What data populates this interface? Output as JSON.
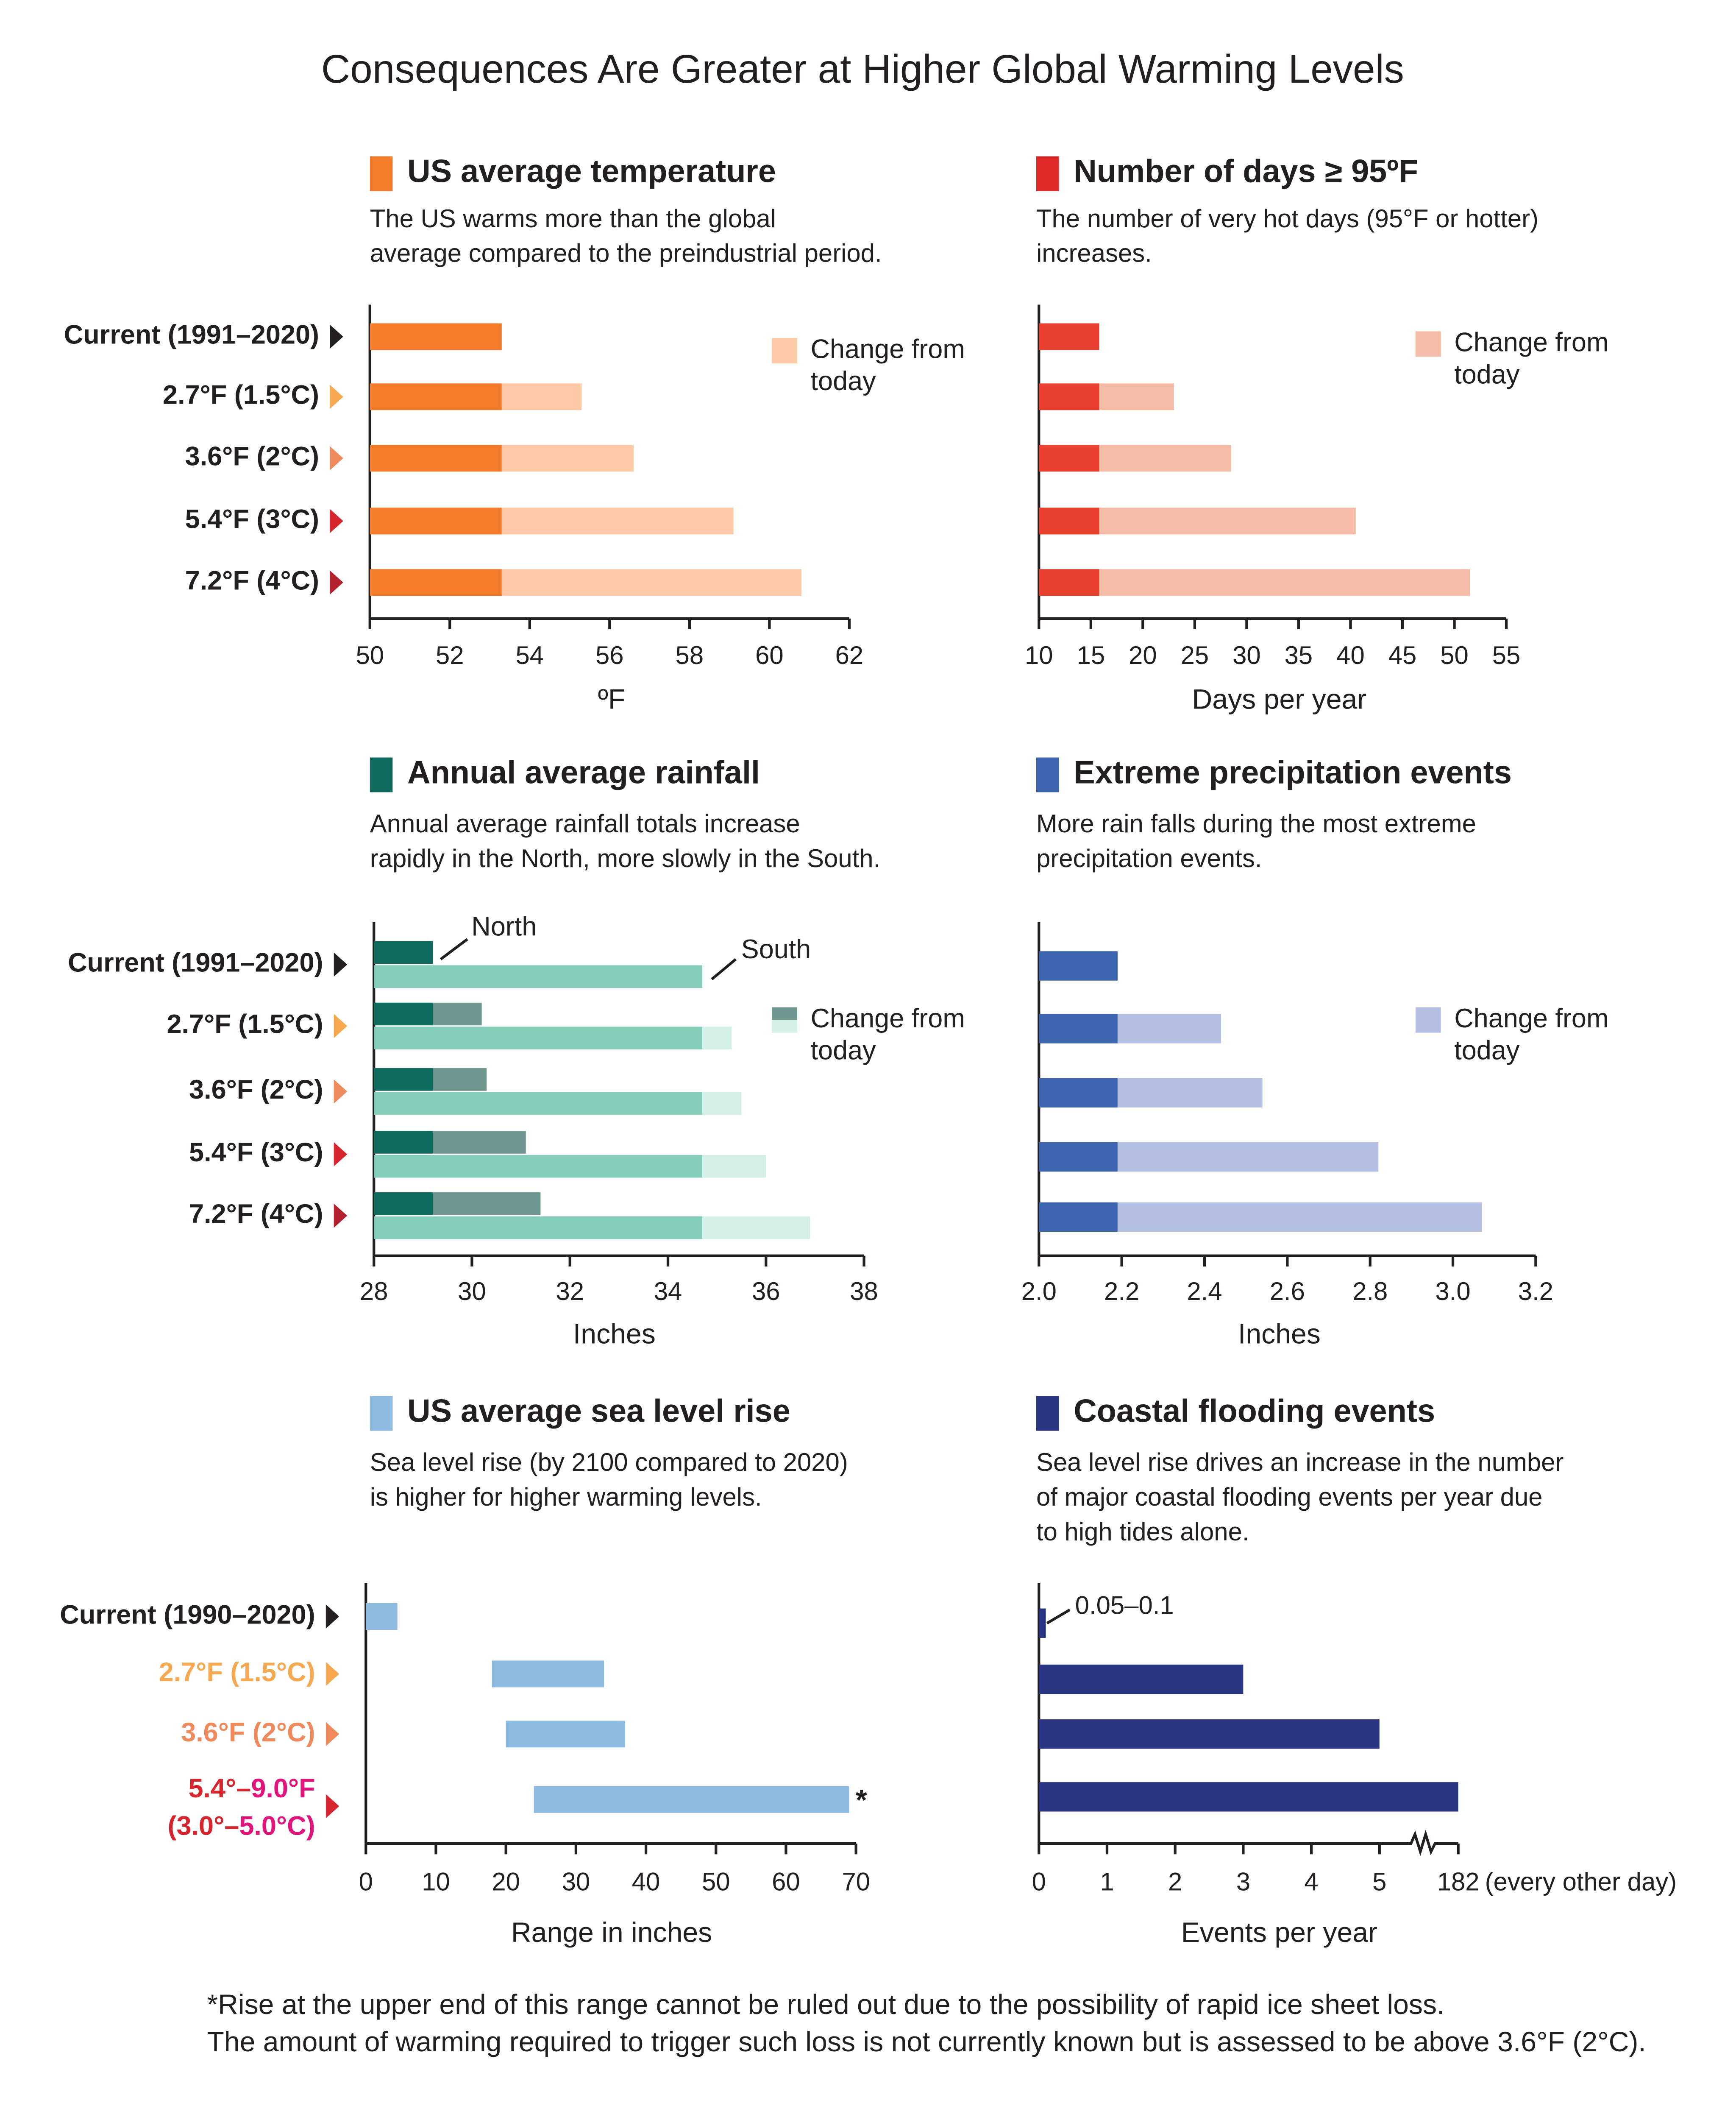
{
  "title": "Consequences Are Greater at Higher Global Warming Levels",
  "footnote": [
    "*Rise at the upper end of this range cannot be ruled out due to the possibility of rapid ice sheet loss.",
    "The amount of warming required to trigger such loss is not currently known but is assessed to be above 3.6°F (2°C)."
  ],
  "chart_data": [
    {
      "type": "bar",
      "title": "US average temperature",
      "title_color": "#f47b2a",
      "subtitle": [
        "The US warms more than the global",
        "average compared to the preindustrial period."
      ],
      "categories": [
        "Current (1991–2020)",
        "2.7°F (1.5°C)",
        "3.6°F (2°C)",
        "5.4°F (3°C)",
        "7.2°F (4°C)"
      ],
      "category_colors": [
        "#231f20",
        "#f6a951",
        "#ee8a5c",
        "#d7252d",
        "#b3202e"
      ],
      "groups": [
        {
          "series": [
            {
              "color": "#f47b2a",
              "values": [
                53.3,
                53.3,
                53.3,
                53.3,
                53.3
              ]
            },
            {
              "name": "Change from today",
              "color": "#fdcaa5",
              "values": [
                null,
                2.0,
                3.3,
                5.8,
                7.5
              ]
            }
          ]
        }
      ],
      "xlim": [
        50,
        62
      ],
      "xticks": [
        50,
        52,
        54,
        56,
        58,
        60,
        62
      ],
      "xlabel": "ºF"
    },
    {
      "type": "bar",
      "title": "Number of days ≥ 95ºF",
      "title_color": "#e02b2b",
      "subtitle": [
        "The number of very hot days (95°F or hotter)",
        "increases."
      ],
      "groups": [
        {
          "series": [
            {
              "color": "#e8412f",
              "values": [
                15.8,
                15.8,
                15.8,
                15.8,
                15.8
              ]
            },
            {
              "name": "Change from today",
              "color": "#f4bba6",
              "values": [
                null,
                7.2,
                12.7,
                24.7,
                35.7
              ]
            }
          ]
        }
      ],
      "xlim": [
        10,
        55
      ],
      "xticks": [
        10,
        15,
        20,
        25,
        30,
        35,
        40,
        45,
        50,
        55
      ],
      "xlabel": "Days per year"
    },
    {
      "type": "bar",
      "title": "Annual average rainfall",
      "title_color": "#0e6b5e",
      "subtitle": [
        "Annual average rainfall totals increase",
        "rapidly in the North, more slowly in the South."
      ],
      "categories": [
        "Current (1991–2020)",
        "2.7°F (1.5°C)",
        "3.6°F (2°C)",
        "5.4°F (3°C)",
        "7.2°F (4°C)"
      ],
      "category_colors": [
        "#231f20",
        "#f6a951",
        "#ee8a5c",
        "#d7252d",
        "#b3202e"
      ],
      "groups": [
        {
          "name": "North",
          "series": [
            {
              "color": "#0e6b5e",
              "values": [
                29.2,
                29.2,
                29.2,
                29.2,
                29.2
              ]
            },
            {
              "name": "Change from today",
              "color": "#6f968f",
              "values": [
                null,
                1.0,
                1.1,
                1.9,
                2.2
              ]
            }
          ]
        },
        {
          "name": "South",
          "series": [
            {
              "color": "#84cdb9",
              "values": [
                34.7,
                34.7,
                34.7,
                34.7,
                34.7
              ]
            },
            {
              "color": "#d4efe6",
              "values": [
                null,
                0.6,
                0.8,
                1.3,
                2.2
              ]
            }
          ]
        }
      ],
      "xlim": [
        28,
        38
      ],
      "xticks": [
        28,
        30,
        32,
        34,
        36,
        38
      ],
      "xlabel": "Inches"
    },
    {
      "type": "bar",
      "title": "Extreme precipitation events",
      "title_color": "#3e66b0",
      "subtitle": [
        "More rain falls during the most extreme",
        "precipitation events."
      ],
      "groups": [
        {
          "series": [
            {
              "color": "#3e66b0",
              "values": [
                2.19,
                2.19,
                2.19,
                2.19,
                2.19
              ]
            },
            {
              "name": "Change from today",
              "color": "#b5bfe3",
              "values": [
                null,
                0.25,
                0.35,
                0.63,
                0.88
              ]
            }
          ]
        }
      ],
      "xlim": [
        2.0,
        3.2
      ],
      "xticks": [
        {
          "value": 2.0,
          "label": "2.0"
        },
        2.2,
        2.4,
        2.6,
        2.8,
        {
          "value": 3.0,
          "label": "3.0"
        },
        3.2
      ],
      "xlabel": "Inches"
    },
    {
      "type": "range",
      "title": "US average sea level rise",
      "title_color": "#8dbae0",
      "subtitle": [
        "Sea level rise (by 2100 compared to 2020)",
        "is higher for higher warming levels."
      ],
      "categories": [
        [
          [
            "Current (1990–2020)"
          ]
        ],
        [
          [
            "2.7°F (1.5°C)"
          ]
        ],
        [
          [
            "3.6°F (2°C)"
          ]
        ],
        [
          [
            "5.4°–",
            "9.0°F"
          ],
          [
            "(3.0°–",
            "5.0°C)"
          ]
        ]
      ],
      "category_colors": [
        [
          "#231f20"
        ],
        [
          "#f6a951"
        ],
        [
          "#ee8a5c"
        ],
        [
          "#d7252d",
          "#e0147a"
        ]
      ],
      "color": "#8dbae0",
      "low": [
        0,
        18,
        20,
        24
      ],
      "high": [
        4.5,
        34,
        37,
        69
      ],
      "annotation": "*",
      "xlim": [
        0,
        70
      ],
      "xticks": [
        0,
        10,
        20,
        30,
        40,
        50,
        60,
        70
      ],
      "xlabel": "Range in inches"
    },
    {
      "type": "broken-bar",
      "title": "Coastal flooding events",
      "title_color": "#283583",
      "subtitle": [
        "Sea level rise drives an increase in the number",
        "of major coastal flooding events per year due",
        "to high tides alone."
      ],
      "color": "#283583",
      "values": [
        0.1,
        3,
        5,
        182
      ],
      "value_labels": [
        "0.05–0.1",
        null,
        null,
        null
      ],
      "xlim": [
        0,
        182
      ],
      "axis_break": [
        5,
        182
      ],
      "xticks": [
        0,
        1,
        2,
        3,
        4,
        5,
        182
      ],
      "xtick_note": "(every other day)",
      "xlabel": "Events per year"
    }
  ]
}
